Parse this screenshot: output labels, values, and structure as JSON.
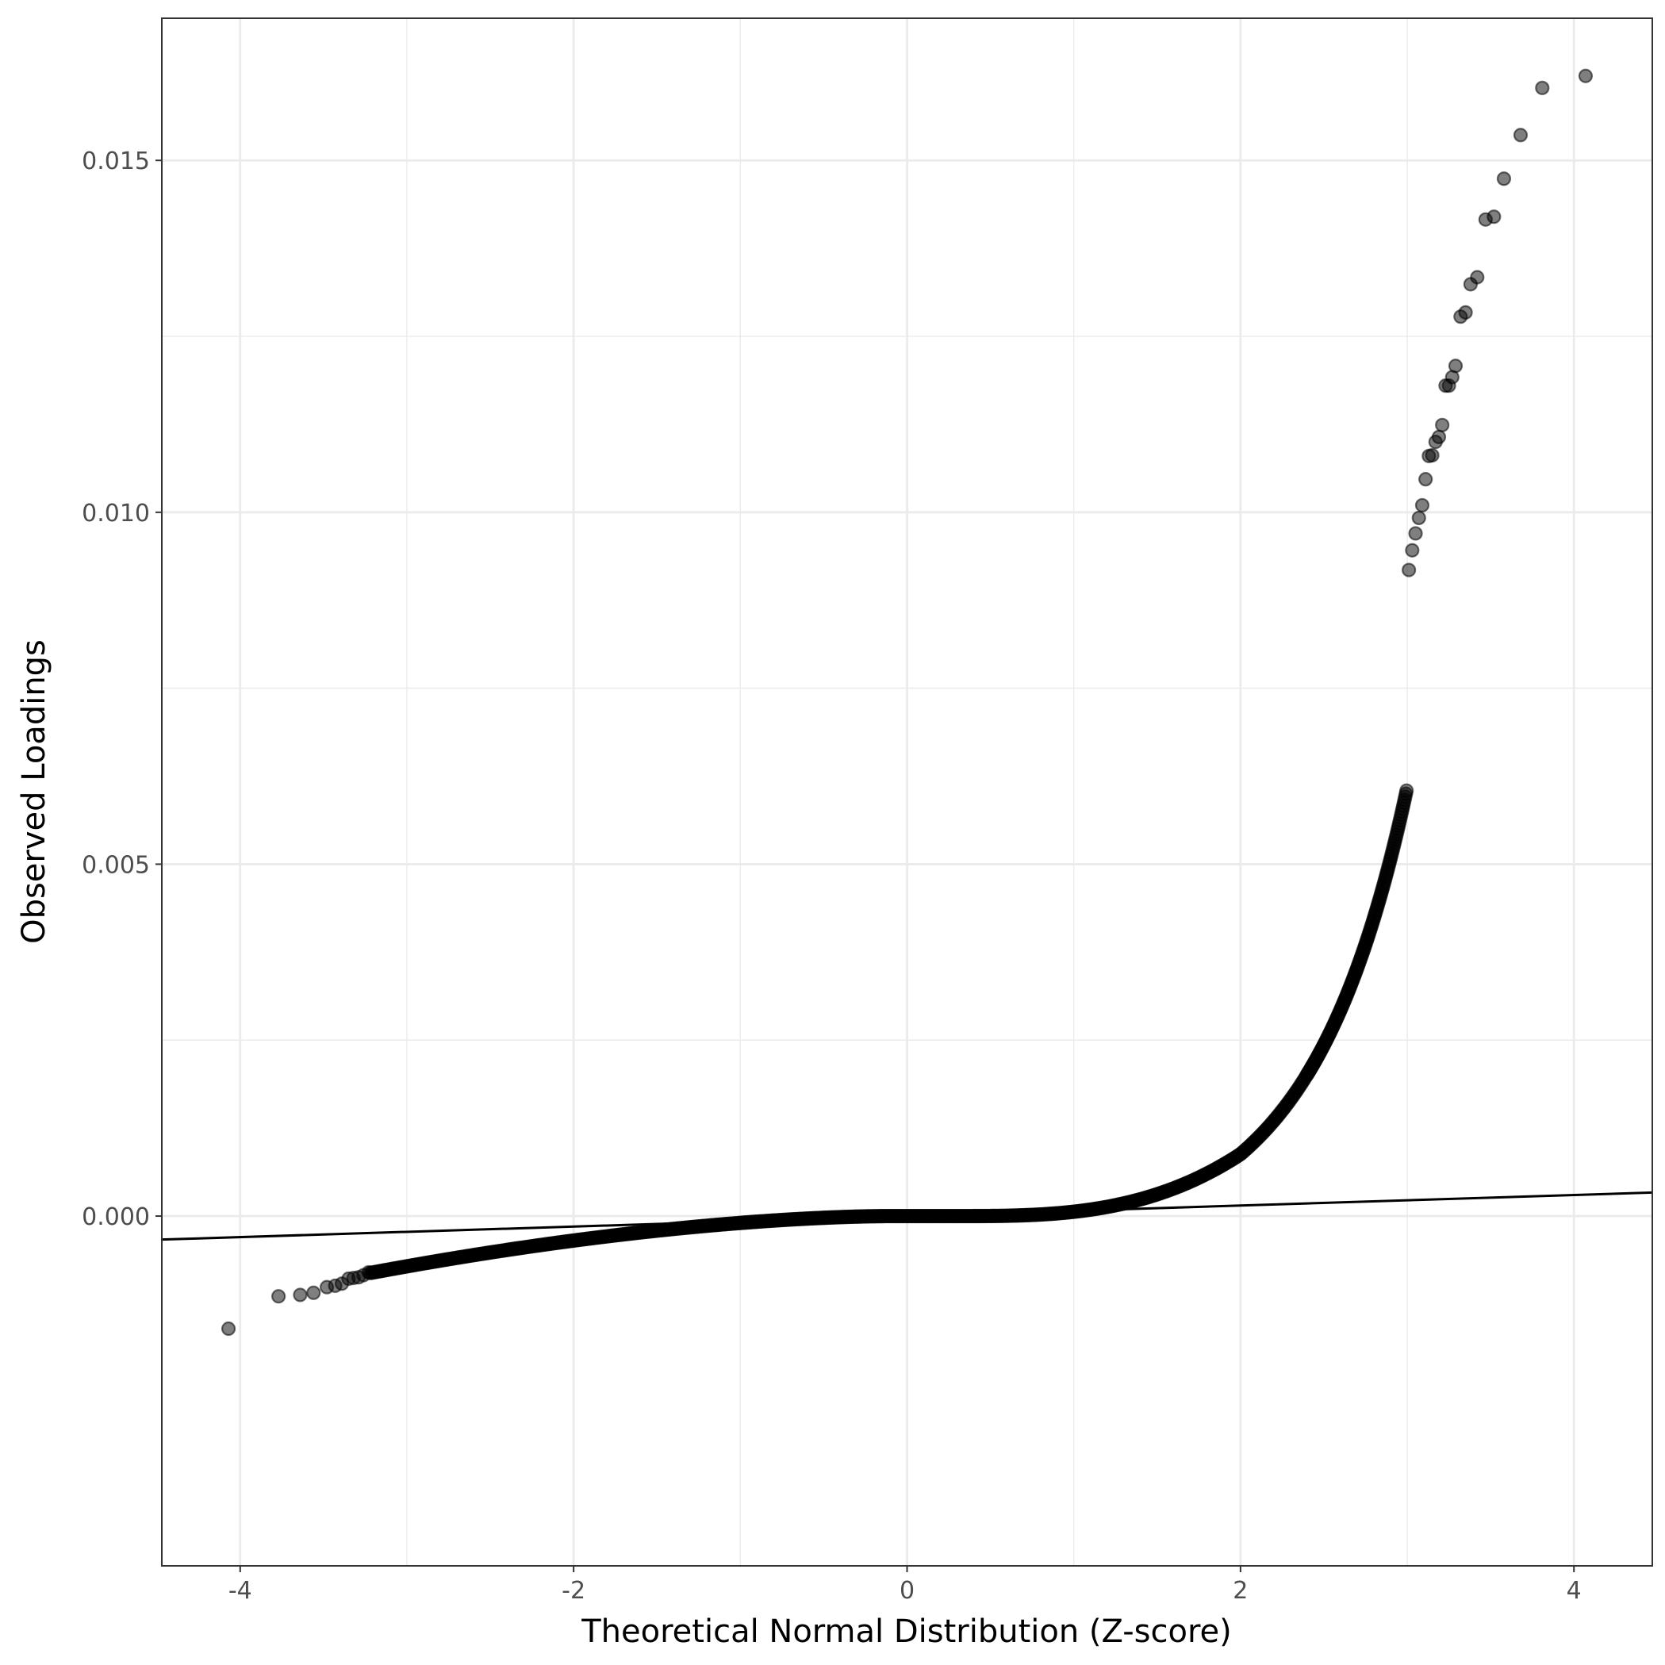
{
  "chart_data": {
    "type": "scatter",
    "title": "",
    "xlabel": "Theoretical Normal Distribution (Z-score)",
    "ylabel": "Observed Loadings",
    "xlim": [
      -4.47,
      4.47
    ],
    "ylim": [
      -0.00497,
      0.01702
    ],
    "x_ticks": [
      -4,
      -2,
      0,
      2,
      4
    ],
    "x_tick_labels": [
      "-4",
      "-2",
      "0",
      "2",
      "4"
    ],
    "y_ticks": [
      0,
      0.005,
      0.01,
      0.015
    ],
    "y_tick_labels": [
      "0.000",
      "0.005",
      "0.010",
      "0.015"
    ],
    "x_minor_grid": [
      -3,
      -1,
      1,
      3
    ],
    "y_minor_grid": [
      0.0025,
      0.0075,
      0.0125
    ],
    "grid": true,
    "theme": "bw",
    "colors": {
      "points": "#000000",
      "reference_line": "#000000",
      "grid": "#ebebeb",
      "panel_border": "#333333"
    },
    "reference_line": {
      "description": "Q-Q reference line",
      "slope": 7.47e-05,
      "intercept": 0.0,
      "x_range": [
        -4.47,
        4.47
      ]
    },
    "series": [
      {
        "points": [
          [
            -4.07,
            -0.0016
          ],
          [
            -3.77,
            -0.00114
          ],
          [
            -3.64,
            -0.00112
          ],
          [
            -3.56,
            -0.00109
          ],
          [
            -3.48,
            -0.00101
          ],
          [
            -3.43,
            -0.00099
          ],
          [
            -3.39,
            -0.00096
          ],
          [
            -3.35,
            -0.00089
          ],
          [
            -3.32,
            -0.00088
          ],
          [
            -3.29,
            -0.00087
          ],
          [
            -3.26,
            -0.00084
          ],
          [
            -3.23,
            -0.0008
          ],
          [
            3.01,
            0.00918
          ],
          [
            3.03,
            0.00946
          ],
          [
            3.05,
            0.0097
          ],
          [
            3.07,
            0.00992
          ],
          [
            3.09,
            0.0101
          ],
          [
            3.11,
            0.01047
          ],
          [
            3.13,
            0.0108
          ],
          [
            3.15,
            0.01081
          ],
          [
            3.17,
            0.011
          ],
          [
            3.19,
            0.01107
          ],
          [
            3.21,
            0.01124
          ],
          [
            3.23,
            0.0118
          ],
          [
            3.25,
            0.0118
          ],
          [
            3.27,
            0.01192
          ],
          [
            3.29,
            0.01208
          ],
          [
            3.32,
            0.01278
          ],
          [
            3.35,
            0.01284
          ],
          [
            3.38,
            0.01324
          ],
          [
            3.42,
            0.01334
          ],
          [
            3.47,
            0.01416
          ],
          [
            3.52,
            0.0142
          ],
          [
            3.58,
            0.01474
          ],
          [
            3.68,
            0.01536
          ],
          [
            3.81,
            0.01603
          ],
          [
            4.07,
            0.0162
          ]
        ]
      }
    ]
  }
}
